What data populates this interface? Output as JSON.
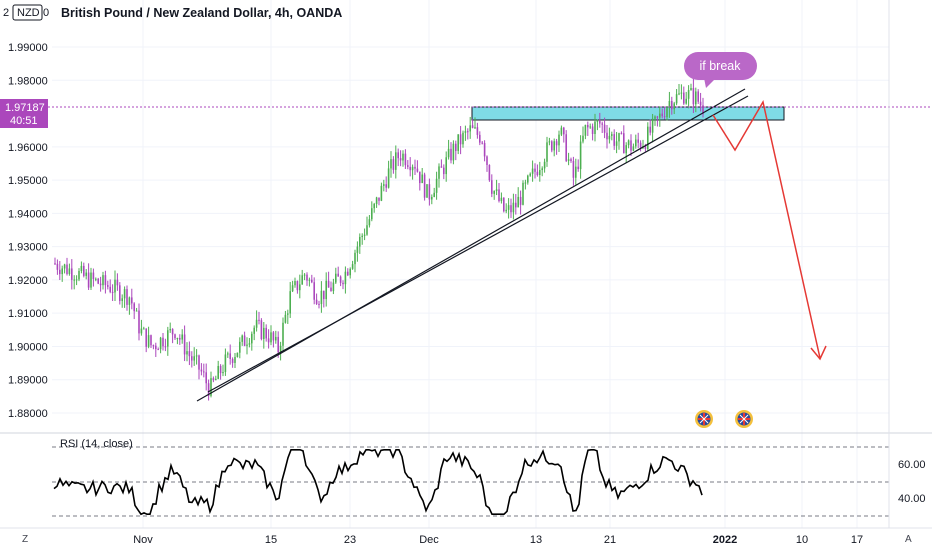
{
  "header": {
    "symbol_code": "NZD",
    "symbol_prefix": "2",
    "symbol_suffix": "0",
    "title": "British Pound / New Zealand Dollar, 4h, OANDA"
  },
  "price_axis": {
    "ticks": [
      "1.99000",
      "1.98000",
      "1.96000",
      "1.95000",
      "1.94000",
      "1.93000",
      "1.92000",
      "1.91000",
      "1.90000",
      "1.89000",
      "1.88000"
    ],
    "tick_values": [
      1.99,
      1.98,
      1.96,
      1.95,
      1.94,
      1.93,
      1.92,
      1.91,
      1.9,
      1.89,
      1.88
    ],
    "current_price": "1.97187",
    "current_price_value": 1.97187,
    "countdown": "40:51"
  },
  "time_axis": {
    "labels": [
      "Nov",
      "15",
      "23",
      "Dec",
      "13",
      "21",
      "2022",
      "10",
      "17"
    ]
  },
  "annotation": {
    "bubble_text": "if break"
  },
  "rsi": {
    "label": "RSI (14, close)",
    "ticks": [
      "60.00",
      "40.00"
    ]
  },
  "footer": {
    "left_button": "Z",
    "right_button": "A"
  },
  "colors": {
    "up_candle": "#4caf50",
    "down_candle": "#ab47bc",
    "zone_fill": "#7fdbe6",
    "arrow": "#e53935",
    "badge": "#ab47bc",
    "bubble": "#ba68c8"
  },
  "chart_data": {
    "type": "candlestick",
    "title": "British Pound / New Zealand Dollar, 4h, OANDA",
    "ylim": [
      1.875,
      2.0
    ],
    "yticks": [
      1.88,
      1.89,
      1.9,
      1.91,
      1.92,
      1.93,
      1.94,
      1.95,
      1.96,
      1.98,
      1.99
    ],
    "x": [
      "Nov",
      "15",
      "23",
      "Dec",
      "13",
      "21",
      "2022",
      "10",
      "17"
    ],
    "close_path": [
      1.925,
      1.922,
      1.919,
      1.918,
      1.915,
      1.905,
      1.9,
      1.895,
      1.887,
      1.893,
      1.9,
      1.905,
      1.903,
      1.899,
      1.915,
      1.922,
      1.918,
      1.92,
      1.93,
      1.945,
      1.955,
      1.948,
      1.945,
      1.955,
      1.96,
      1.965,
      1.955,
      1.945,
      1.94,
      1.95,
      1.96,
      1.965,
      1.95,
      1.965,
      1.966,
      1.962,
      1.96,
      1.968,
      1.975,
      1.972
    ],
    "last_price": 1.97187,
    "resistance_zone": [
      1.9675,
      1.972
    ],
    "rsi_levels": [
      70,
      30
    ]
  }
}
